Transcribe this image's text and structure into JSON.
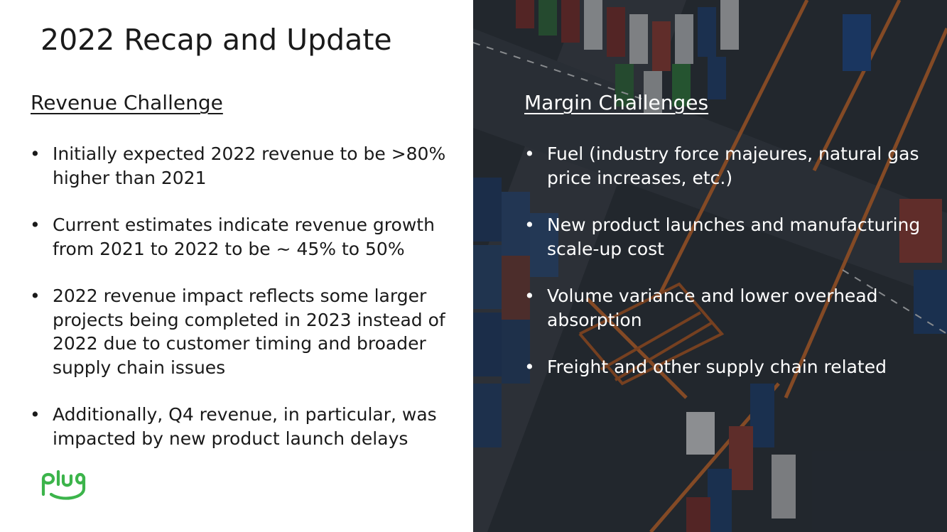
{
  "slide": {
    "title": "2022 Recap and Update",
    "revenue": {
      "heading": "Revenue Challenge",
      "bullets": [
        "Initially expected 2022 revenue to be >80% higher than 2021",
        "Current estimates indicate revenue growth from 2021 to 2022 to be ~ 45% to 50%",
        "2022 revenue impact reflects some larger projects being completed in 2023 instead of 2022 due to customer timing and broader supply chain issues",
        "Additionally, Q4 revenue, in particular, was impacted by new product launch delays"
      ]
    },
    "margin": {
      "heading": "Margin Challenges",
      "bullets": [
        "Fuel (industry force majeures, natural gas price increases, etc.)",
        "New product launches and manufacturing scale-up cost",
        "Volume variance and lower overhead absorption",
        "Freight and other supply chain related"
      ]
    },
    "logo": {
      "text": "plug",
      "color": "#3cb44b",
      "icon": "plug-logo"
    },
    "photo": {
      "subject": "shipping-container-port-aerial"
    }
  }
}
